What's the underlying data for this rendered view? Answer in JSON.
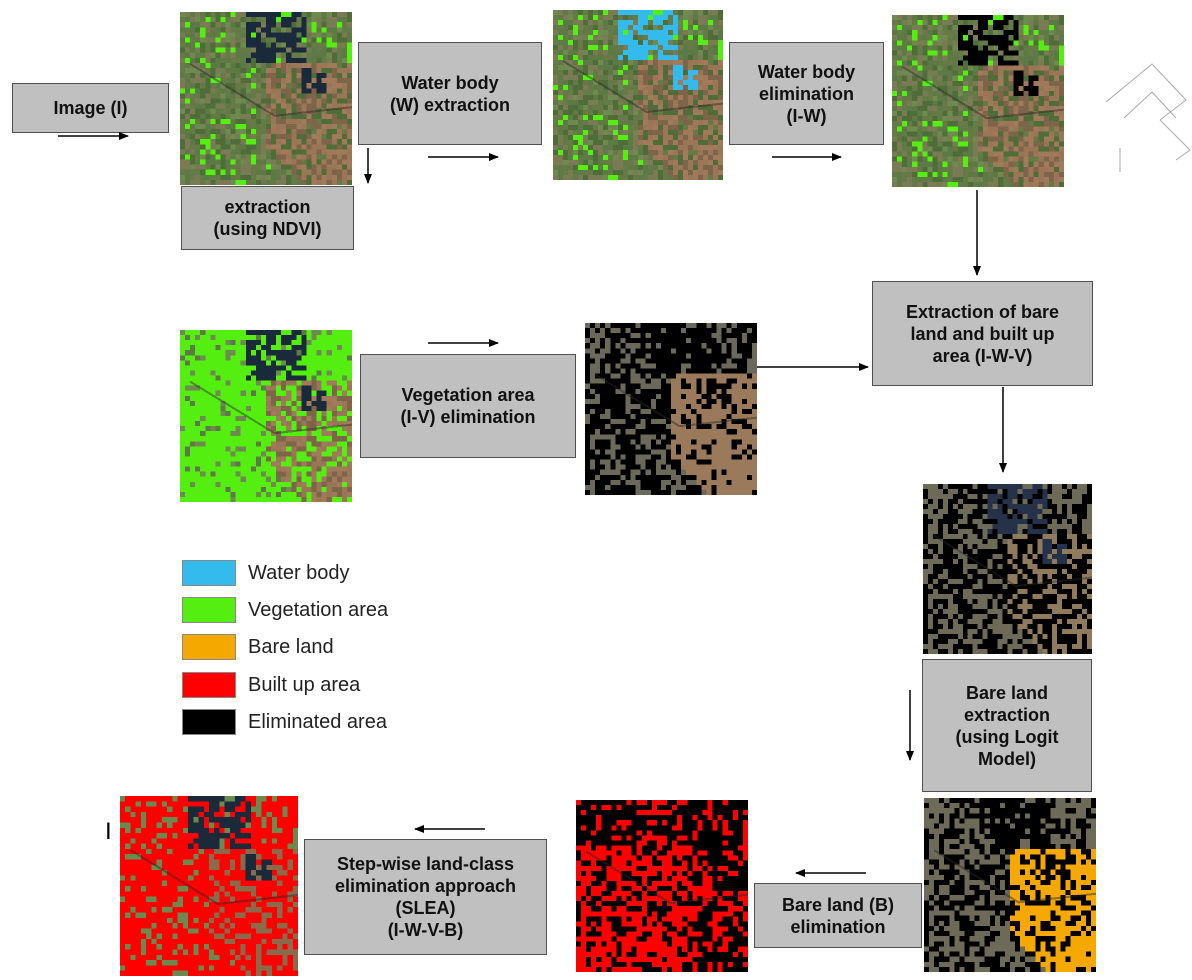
{
  "steps": {
    "image_input": "Image (I)",
    "water_extraction": "Water body\n(W) extraction",
    "water_elimination": "Water body\nelimination\n(I-W)",
    "veg_extraction": "extraction\n(using NDVI)",
    "bare_built_extraction": "Extraction of bare\nland and built up\narea (I-W-V)",
    "veg_elimination": "Vegetation area\n(I-V) elimination",
    "bare_extraction_logit": "Bare land\nextraction\n(using Logit\nModel)",
    "bare_elimination": "Bare land (B)\nelimination",
    "slea": "Step-wise land-class\nelimination approach\n(SLEA)\n(I-W-V-B)"
  },
  "legend": [
    {
      "label": "Water body",
      "color": "#33bbee"
    },
    {
      "label": "Vegetation area",
      "color": "#55ee11"
    },
    {
      "label": "Bare land",
      "color": "#f5a800"
    },
    {
      "label": "Built up area",
      "color": "#ff0000"
    },
    {
      "label": "Eliminated area",
      "color": "#000000"
    }
  ],
  "stray_mark": "I",
  "colors": {
    "box_fill": "#c0c0c0",
    "box_border": "#505050",
    "terrain_green": "#5a7a3a",
    "terrain_brown": "#8a6a4a",
    "dark_water": "#1a2a3a"
  }
}
